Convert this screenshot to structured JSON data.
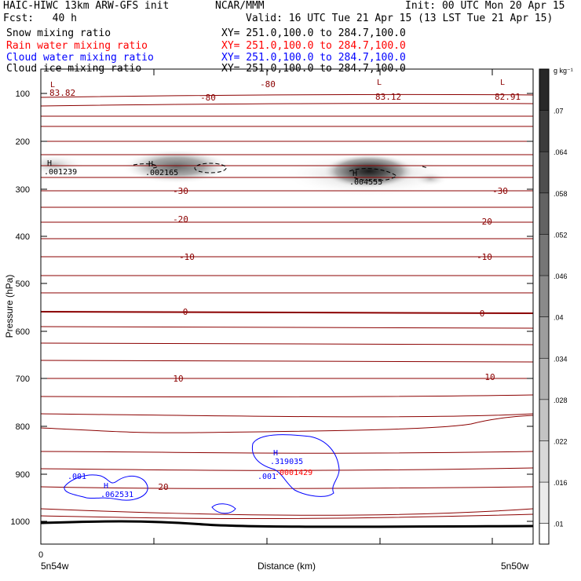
{
  "header": {
    "model": "HAIC-HIWC 13km ARW-GFS init",
    "center": "NCAR/MMM",
    "init": "Init: 00 UTC Mon 20 Apr 15",
    "fcst": "Fcst:   40 h",
    "valid": "Valid: 16 UTC Tue 21 Apr 15 (13 LST Tue 21 Apr 15)",
    "fields": [
      {
        "label": "Snow mixing ratio",
        "xy": "XY= 251.0,100.0 to 284.7,100.0",
        "color": "#000000"
      },
      {
        "label": "Rain water mixing ratio",
        "xy": "XY= 251.0,100.0 to 284.7,100.0",
        "color": "#ff0000"
      },
      {
        "label": "Cloud water mixing ratio",
        "xy": "XY= 251.0,100.0 to 284.7,100.0",
        "color": "#0000ff"
      },
      {
        "label": "Cloud ice mixing ratio",
        "xy": "XY= 251.0,100.0 to 284.7,100.0",
        "color": "#000000"
      }
    ]
  },
  "chart_data": {
    "type": "cross-section",
    "ylabel": "Pressure (hPa)",
    "xlabel": "Distance (km)",
    "y_ticks": [
      100,
      200,
      300,
      400,
      500,
      600,
      700,
      800,
      900,
      1000
    ],
    "ylim": [
      1045,
      50
    ],
    "x_tick_label": "0",
    "x_left_label": "5n54w",
    "x_right_label": "5n50w",
    "colorbar": {
      "unit": "g kg⁻¹",
      "ticks": [
        ".07",
        ".064",
        ".058",
        ".052",
        ".046",
        ".04",
        ".034",
        ".028",
        ".022",
        ".016",
        ".01"
      ]
    },
    "temperature_contours": {
      "color": "#8b0000",
      "labels": [
        "-80",
        "-80",
        "-30",
        "-30",
        "-20",
        "-20",
        "-10",
        "-10",
        "0",
        "0",
        "10",
        "10",
        "20"
      ],
      "extreme_values": [
        "83.82",
        "83.12",
        "82.91"
      ]
    },
    "snow_maxima": [
      {
        "mark": "H",
        "value": ".001239"
      },
      {
        "mark": "H",
        "value": ".002165"
      },
      {
        "mark": "H",
        "value": ".004555"
      }
    ],
    "cloud_water": [
      {
        "mark": "H",
        "value": ".062531",
        "contour": ".001"
      },
      {
        "mark": "H",
        "value": ".319035",
        "contour": ".001"
      }
    ],
    "rain_water": [
      {
        "value": ".0001429"
      }
    ]
  }
}
